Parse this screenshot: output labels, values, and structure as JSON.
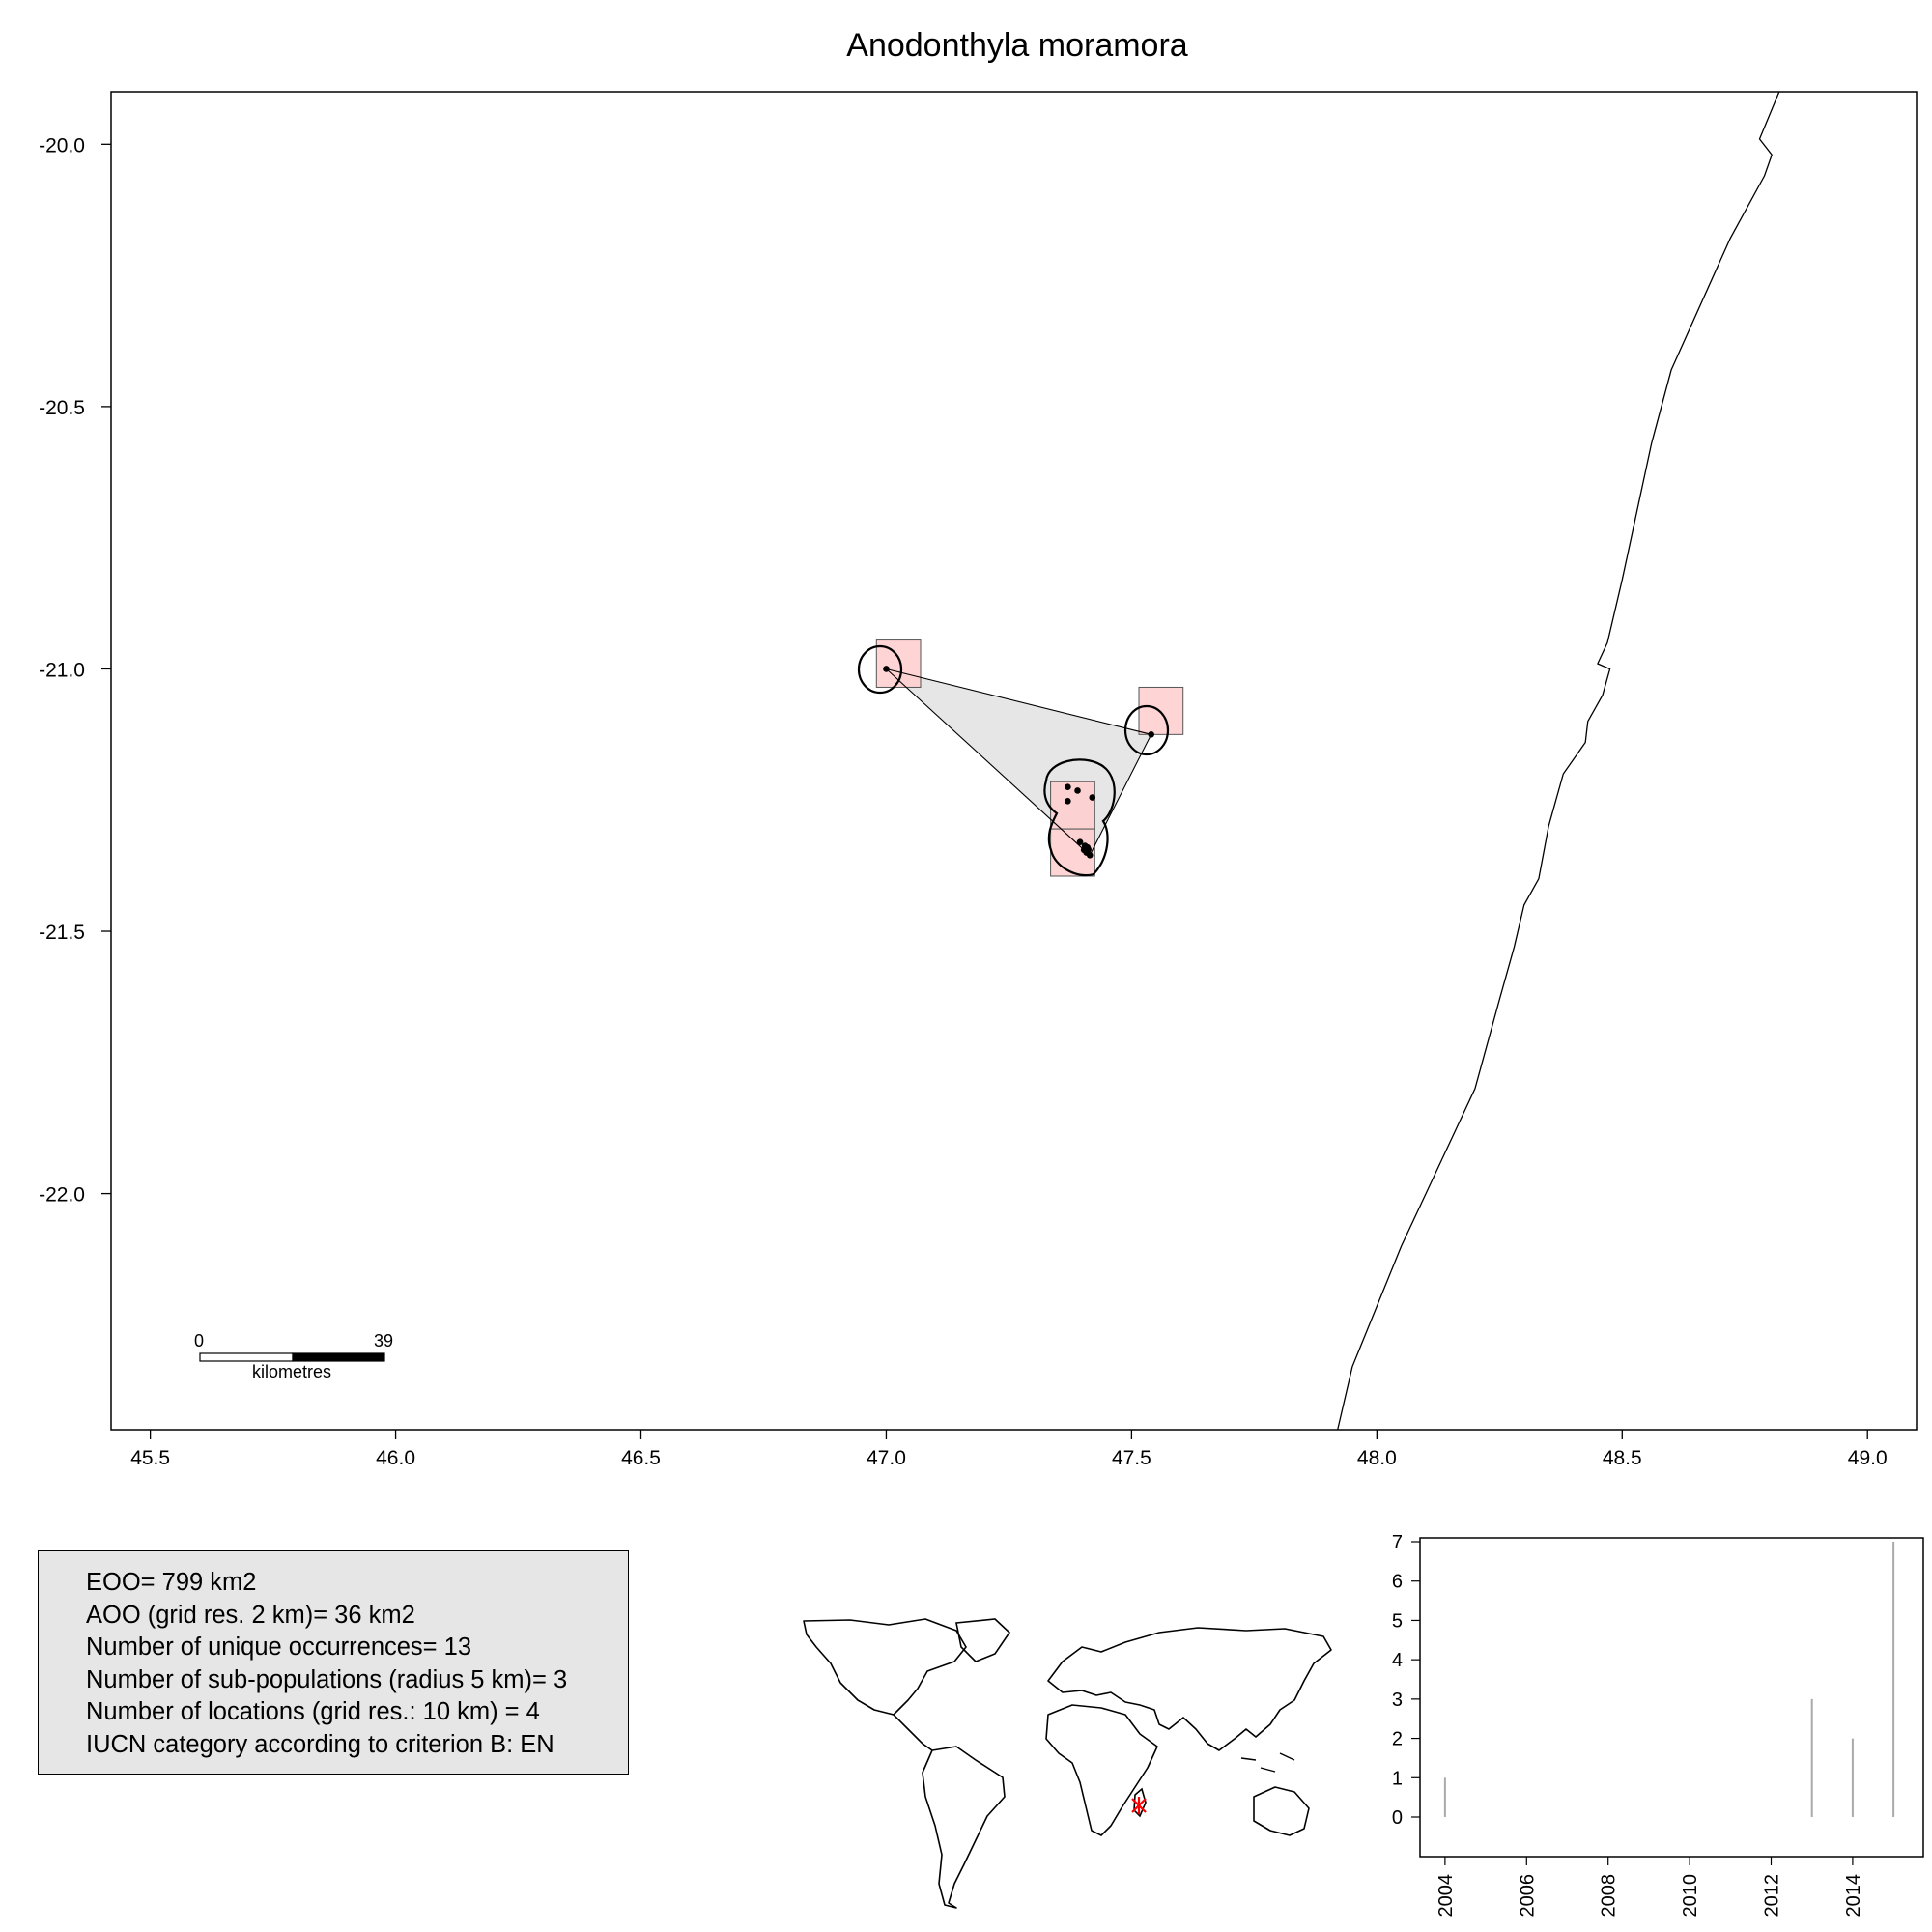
{
  "title": "Anodonthyla moramora",
  "main_map": {
    "x_ticks": [
      45.5,
      46.0,
      46.5,
      47.0,
      47.5,
      48.0,
      48.5,
      49.0
    ],
    "y_ticks": [
      -20.0,
      -20.5,
      -21.0,
      -21.5,
      -22.0
    ],
    "x_tick_labels": [
      "45.5",
      "46.0",
      "46.5",
      "47.0",
      "47.5",
      "48.0",
      "48.5",
      "49.0"
    ],
    "y_tick_labels": [
      "-20.0",
      "-20.5",
      "-21.0",
      "-21.5",
      "-22.0"
    ],
    "xlim": [
      45.42,
      49.1
    ],
    "ylim": [
      -22.45,
      -19.9
    ],
    "occurrences": [
      [
        47.0,
        -21.0
      ],
      [
        47.54,
        -21.125
      ],
      [
        47.37,
        -21.225
      ],
      [
        47.39,
        -21.232
      ],
      [
        47.42,
        -21.245
      ],
      [
        47.37,
        -21.252
      ],
      [
        47.395,
        -21.33
      ],
      [
        47.405,
        -21.337
      ],
      [
        47.41,
        -21.34
      ],
      [
        47.412,
        -21.344
      ],
      [
        47.408,
        -21.35
      ],
      [
        47.415,
        -21.355
      ],
      [
        47.403,
        -21.345
      ]
    ],
    "eoo_polygon": [
      [
        47.0,
        -21.0
      ],
      [
        47.54,
        -21.125
      ],
      [
        47.415,
        -21.355
      ]
    ],
    "aoo_cells": [
      [
        46.98,
        -20.945,
        47.07,
        -21.035
      ],
      [
        47.515,
        -21.035,
        47.605,
        -21.125
      ],
      [
        47.335,
        -21.215,
        47.425,
        -21.305
      ],
      [
        47.335,
        -21.305,
        47.425,
        -21.395
      ]
    ],
    "coastline": [
      [
        48.82,
        -19.9
      ],
      [
        48.78,
        -19.99
      ],
      [
        48.805,
        -20.02
      ],
      [
        48.79,
        -20.06
      ],
      [
        48.72,
        -20.18
      ],
      [
        48.6,
        -20.43
      ],
      [
        48.56,
        -20.57
      ],
      [
        48.5,
        -20.83
      ],
      [
        48.47,
        -20.95
      ],
      [
        48.45,
        -20.99
      ],
      [
        48.475,
        -21.0
      ],
      [
        48.46,
        -21.05
      ],
      [
        48.43,
        -21.1
      ],
      [
        48.425,
        -21.14
      ],
      [
        48.38,
        -21.2
      ],
      [
        48.35,
        -21.3
      ],
      [
        48.33,
        -21.4
      ],
      [
        48.3,
        -21.45
      ],
      [
        48.28,
        -21.53
      ],
      [
        48.25,
        -21.63
      ],
      [
        48.2,
        -21.8
      ],
      [
        48.1,
        -22.0
      ],
      [
        48.05,
        -22.1
      ],
      [
        47.95,
        -22.33
      ],
      [
        47.92,
        -22.45
      ]
    ],
    "scale_bar": {
      "start_label": "0",
      "end_label": "39",
      "unit_label": "kilometres"
    }
  },
  "stats": {
    "eoo": "EOO= 799 km2",
    "aoo": "AOO (grid res. 2 km)= 36 km2",
    "unique_occurrences": "Number of unique occurrences= 13",
    "subpopulations": "Number of sub-populations (radius 5 km)= 3",
    "locations": "Number of locations (grid res.: 10  km) = 4",
    "iucn_category": "IUCN category according to criterion B: EN"
  },
  "inset_world_map": {
    "highlight_color": "#ff0000"
  },
  "chart_data": {
    "type": "bar",
    "x": [
      2004,
      2013,
      2014,
      2015
    ],
    "values": [
      1,
      3,
      2,
      7
    ],
    "xlim": [
      2003.6,
      2015.4
    ],
    "ylim": [
      0,
      7
    ],
    "x_tick_labels": [
      "2004",
      "2006",
      "2008",
      "2010",
      "2012",
      "2014"
    ],
    "y_tick_labels": [
      "0",
      "1",
      "2",
      "3",
      "4",
      "5",
      "6",
      "7"
    ],
    "title": "",
    "xlabel": "",
    "ylabel": ""
  },
  "colors": {
    "aoo_cell_fill": "#ffcccc",
    "eoo_fill": "#e6e6e6",
    "stats_box_fill": "#e6e6e6",
    "bar_color": "#aaaaaa"
  }
}
